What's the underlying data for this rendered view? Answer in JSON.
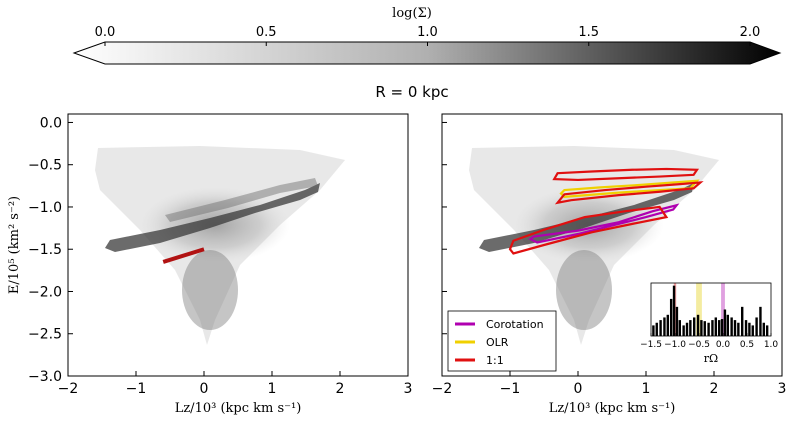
{
  "colorbar": {
    "label": "log(Σ)",
    "ticks": [
      "0.0",
      "0.5",
      "1.0",
      "1.5",
      "2.0"
    ],
    "range": [
      0,
      2.0
    ],
    "extend": "both",
    "colors": {
      "low": "#ffffff",
      "high": "#000000"
    }
  },
  "suptitle": "R = 0 kpc",
  "chart_data": [
    {
      "type": "scatter",
      "panel": "left",
      "xlabel": "Lz/10³ (kpc km s⁻¹)",
      "ylabel": "E/10⁵ (km² s⁻²)",
      "xlim": [
        -2,
        3
      ],
      "ylim": [
        -3.0,
        0.1
      ],
      "xticks": [
        "−2",
        "−1",
        "0",
        "1",
        "2",
        "3"
      ],
      "yticks": [
        "0.0",
        "−0.5",
        "−1.0",
        "−1.5",
        "−2.0",
        "−2.5",
        "−3.0"
      ],
      "density_ridge": {
        "x": [
          -1.0,
          -0.5,
          0.0,
          0.5,
          1.0,
          1.4
        ],
        "y": [
          -1.42,
          -1.35,
          -1.25,
          -1.12,
          -1.0,
          -0.9
        ]
      },
      "series": [
        {
          "color": "#b11212",
          "x": [
            -0.6,
            0.0
          ],
          "y": [
            -1.65,
            -1.5
          ]
        }
      ]
    },
    {
      "type": "scatter",
      "panel": "right",
      "xlabel": "Lz/10³ (kpc km s⁻¹)",
      "xlim": [
        -2,
        3
      ],
      "ylim": [
        -3.0,
        0.1
      ],
      "xticks": [
        "−2",
        "−1",
        "0",
        "1",
        "2",
        "3"
      ],
      "legend_position": "lower-left",
      "series": [
        {
          "name": "Corotation",
          "color": "#b000b0",
          "x": [
            -0.65,
            0.0,
            0.6,
            1.1,
            1.45,
            1.4,
            1.0,
            0.5,
            0.0,
            -0.6,
            -0.7
          ],
          "y": [
            -1.35,
            -1.28,
            -1.18,
            -1.05,
            -0.98,
            -1.03,
            -1.12,
            -1.22,
            -1.32,
            -1.42,
            -1.38
          ]
        },
        {
          "name": "OLR",
          "color": "#f0d000",
          "x": [
            -0.2,
            0.3,
            0.9,
            1.4,
            1.75,
            1.65,
            1.2,
            0.6,
            -0.2,
            -0.25
          ],
          "y": [
            -0.8,
            -0.77,
            -0.74,
            -0.71,
            -0.69,
            -0.78,
            -0.8,
            -0.83,
            -0.88,
            -0.84
          ]
        },
        {
          "name": "1:1",
          "color": "#e01010",
          "loops": [
            {
              "x": [
                -0.3,
                0.2,
                0.8,
                1.3,
                1.75,
                1.7,
                1.2,
                0.6,
                0.0,
                -0.35,
                -0.3
              ],
              "y": [
                -0.6,
                -0.58,
                -0.56,
                -0.55,
                -0.56,
                -0.62,
                -0.64,
                -0.66,
                -0.68,
                -0.67,
                -0.6
              ]
            },
            {
              "x": [
                -0.2,
                0.4,
                1.0,
                1.5,
                1.8,
                1.7,
                1.2,
                0.6,
                -0.1,
                -0.3,
                -0.2
              ],
              "y": [
                -0.85,
                -0.8,
                -0.76,
                -0.73,
                -0.71,
                -0.78,
                -0.82,
                -0.86,
                -0.92,
                -0.95,
                -0.85
              ]
            },
            {
              "x": [
                -0.95,
                -0.5,
                0.1,
                0.7,
                1.2,
                1.3,
                0.8,
                0.2,
                -0.5,
                -0.95,
                -1.0,
                -0.95
              ],
              "y": [
                -1.4,
                -1.27,
                -1.12,
                -1.05,
                -1.0,
                -1.12,
                -1.2,
                -1.3,
                -1.45,
                -1.55,
                -1.5,
                -1.4
              ]
            }
          ]
        }
      ]
    },
    {
      "type": "bar",
      "panel": "inset",
      "xlabel": "rΩ",
      "xlim": [
        -1.5,
        1.0
      ],
      "xticks": [
        "−1.5",
        "−1.0",
        "−0.5",
        "0.0",
        "0.5",
        "1.0"
      ],
      "bands": [
        {
          "name": "1:1",
          "center": -1.0,
          "width": 0.05,
          "color": "#f2a0a0"
        },
        {
          "name": "OLR",
          "center": -0.5,
          "width": 0.12,
          "color": "#f4eca0"
        },
        {
          "name": "Corotation",
          "center": 0.0,
          "width": 0.08,
          "color": "#e0a0e0"
        }
      ],
      "hist_x": [
        -1.45,
        -1.38,
        -1.3,
        -1.22,
        -1.15,
        -1.08,
        -1.02,
        -0.96,
        -0.9,
        -0.82,
        -0.75,
        -0.68,
        -0.6,
        -0.52,
        -0.45,
        -0.38,
        -0.3,
        -0.22,
        -0.15,
        -0.08,
        -0.02,
        0.04,
        0.1,
        0.18,
        0.25,
        0.32,
        0.4,
        0.48,
        0.55,
        0.62,
        0.7,
        0.78,
        0.85,
        0.92
      ],
      "hist_y": [
        0.2,
        0.25,
        0.3,
        0.35,
        0.4,
        0.7,
        0.95,
        0.55,
        0.3,
        0.2,
        0.25,
        0.3,
        0.35,
        0.4,
        0.3,
        0.28,
        0.25,
        0.3,
        0.35,
        0.3,
        0.32,
        0.5,
        0.4,
        0.35,
        0.3,
        0.25,
        0.55,
        0.3,
        0.25,
        0.2,
        0.35,
        0.55,
        0.25,
        0.2
      ]
    }
  ],
  "legend": [
    "Corotation",
    "OLR",
    "1:1"
  ]
}
